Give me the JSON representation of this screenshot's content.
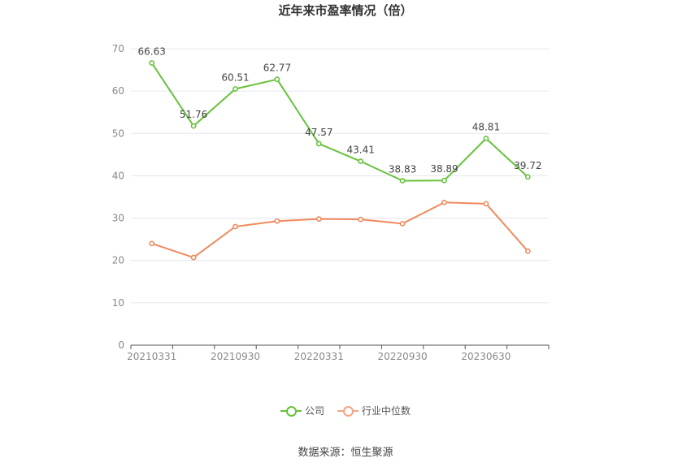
{
  "title": "近年来市盈率情况（倍）",
  "source": "数据来源：恒生聚源",
  "colors": {
    "company": "#67c23a",
    "industry": "#f08a5d",
    "grid": "#e4e6ef",
    "axis": "#555555",
    "tick": "#888888"
  },
  "legend": [
    {
      "label": "公司",
      "color": "#67c23a"
    },
    {
      "label": "行业中位数",
      "color": "#f4a582"
    }
  ],
  "chart_data": {
    "type": "line",
    "x_tick_labels": [
      "20210331",
      "20210930",
      "20220331",
      "20220930",
      "20230630"
    ],
    "y_ticks": [
      0,
      10,
      20,
      30,
      40,
      50,
      60,
      70
    ],
    "ylim": [
      0,
      70
    ],
    "point_count": 10,
    "series": [
      {
        "name": "公司",
        "color": "#67c23a",
        "show_labels": true,
        "values": [
          66.63,
          51.76,
          60.51,
          62.77,
          47.57,
          43.41,
          38.83,
          38.89,
          48.81,
          39.72
        ]
      },
      {
        "name": "行业中位数",
        "color": "#f08a5d",
        "show_labels": false,
        "values": [
          24.0,
          20.7,
          28.0,
          29.3,
          29.8,
          29.7,
          28.7,
          33.7,
          33.4,
          22.2
        ]
      }
    ]
  }
}
